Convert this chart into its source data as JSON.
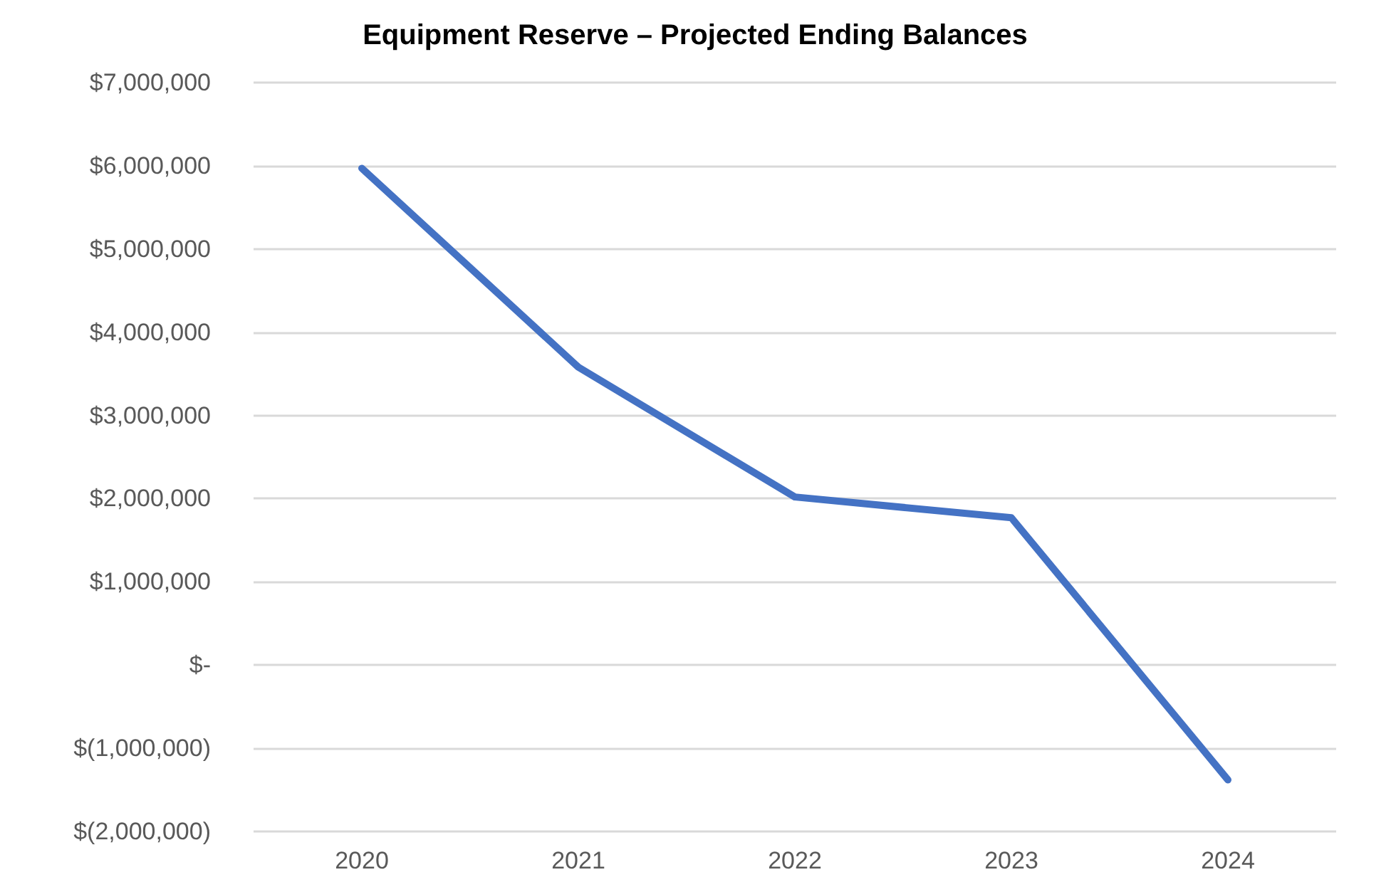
{
  "chart_data": {
    "type": "line",
    "title": "Equipment Reserve – Projected Ending Balances",
    "categories": [
      "2020",
      "2021",
      "2022",
      "2023",
      "2024"
    ],
    "series": [
      {
        "color": "#4472c4",
        "values": [
          5970000,
          3580000,
          2020000,
          1770000,
          -1380000
        ]
      }
    ],
    "ylim": [
      -2000000,
      7000000
    ],
    "yticks": [
      {
        "value": -2000000,
        "label": "$(2,000,000)"
      },
      {
        "value": -1000000,
        "label": "$(1,000,000)"
      },
      {
        "value": 0,
        "label": "$-"
      },
      {
        "value": 1000000,
        "label": "$1,000,000"
      },
      {
        "value": 2000000,
        "label": "$2,000,000"
      },
      {
        "value": 3000000,
        "label": "$3,000,000"
      },
      {
        "value": 4000000,
        "label": "$4,000,000"
      },
      {
        "value": 5000000,
        "label": "$5,000,000"
      },
      {
        "value": 6000000,
        "label": "$6,000,000"
      },
      {
        "value": 7000000,
        "label": "$7,000,000"
      }
    ],
    "grid": "y",
    "marker": "none",
    "line_style": "solid"
  }
}
